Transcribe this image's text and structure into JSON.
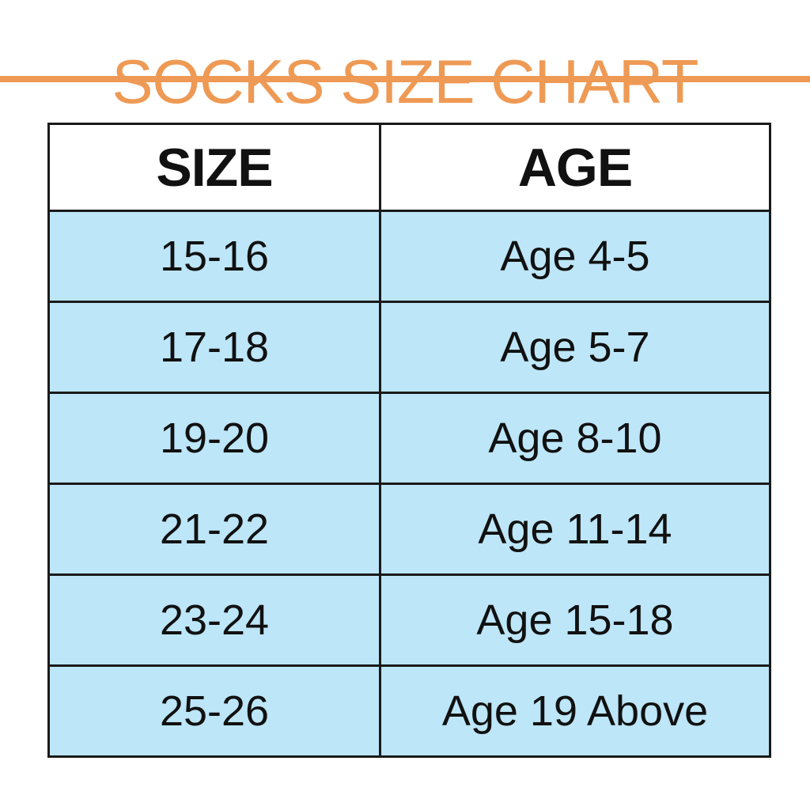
{
  "title": "SOCKS SIZE CHART",
  "colors": {
    "title": "#ee9a55",
    "rule": "#ee9a55",
    "header_bg": "#ffffff",
    "row_bg": "#bde6f8",
    "border": "#1a1a1a",
    "text": "#111111"
  },
  "table": {
    "headers": {
      "size": "SIZE",
      "age": "AGE"
    },
    "rows": [
      {
        "size": "15-16",
        "age": "Age 4-5"
      },
      {
        "size": "17-18",
        "age": "Age 5-7"
      },
      {
        "size": "19-20",
        "age": "Age 8-10"
      },
      {
        "size": "21-22",
        "age": "Age 11-14"
      },
      {
        "size": "23-24",
        "age": "Age 15-18"
      },
      {
        "size": "25-26",
        "age": "Age 19 Above"
      }
    ]
  }
}
